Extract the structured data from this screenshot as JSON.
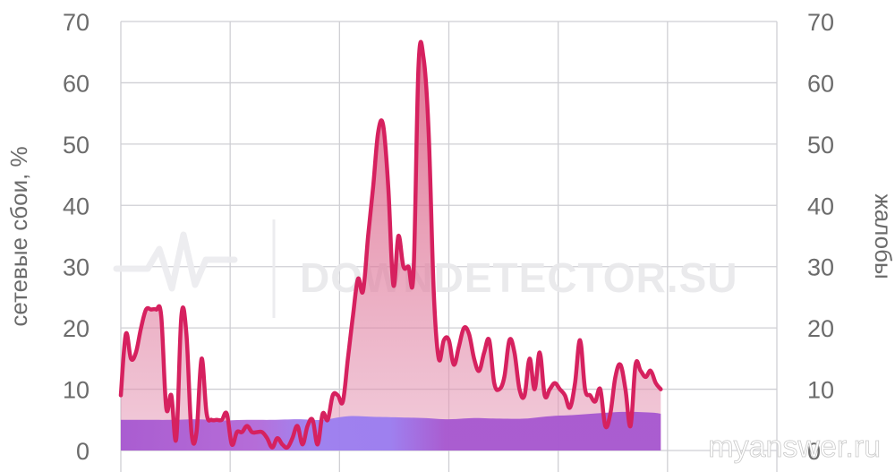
{
  "chart_data": {
    "type": "area",
    "y_left_label": "сетевые сбои, %",
    "y_right_label": "жалобы",
    "ylim": [
      0,
      70
    ],
    "y_ticks": [
      "0",
      "10",
      "20",
      "30",
      "40",
      "50",
      "60",
      "70"
    ],
    "x_range": [
      0,
      130
    ],
    "grid": true,
    "series": [
      {
        "role": "baseline",
        "color": "#a657d0",
        "points": [
          [
            0,
            5
          ],
          [
            5,
            5
          ],
          [
            10,
            5
          ],
          [
            15,
            5.1
          ],
          [
            20,
            4.9
          ],
          [
            25,
            5
          ],
          [
            30,
            5
          ],
          [
            35,
            5.1
          ],
          [
            40,
            5
          ],
          [
            45,
            5.6
          ],
          [
            50,
            5.5
          ],
          [
            55,
            5.4
          ],
          [
            60,
            5.3
          ],
          [
            65,
            5.1
          ],
          [
            70,
            5.3
          ],
          [
            75,
            5.2
          ],
          [
            80,
            5.2
          ],
          [
            85,
            5.6
          ],
          [
            90,
            5.8
          ],
          [
            95,
            6.1
          ],
          [
            100,
            6.3
          ],
          [
            105,
            6.2
          ],
          [
            110,
            6
          ],
          [
            115,
            5.8
          ],
          [
            120,
            5.7
          ],
          [
            125,
            5.6
          ],
          [
            130,
            5.2
          ]
        ]
      },
      {
        "role": "complaints",
        "color": "#d6215f",
        "fill": "#e6a1bd",
        "points": [
          [
            0,
            9
          ],
          [
            1,
            19
          ],
          [
            2,
            15
          ],
          [
            3,
            16
          ],
          [
            4,
            20
          ],
          [
            5,
            23
          ],
          [
            6,
            23
          ],
          [
            7,
            23
          ],
          [
            8,
            22
          ],
          [
            9,
            7
          ],
          [
            10,
            9
          ],
          [
            11,
            2
          ],
          [
            12,
            22
          ],
          [
            13,
            19
          ],
          [
            14,
            3
          ],
          [
            15,
            3
          ],
          [
            16,
            15
          ],
          [
            17,
            6
          ],
          [
            18,
            5
          ],
          [
            19,
            5
          ],
          [
            20,
            5
          ],
          [
            21,
            6
          ],
          [
            22,
            1
          ],
          [
            23,
            3
          ],
          [
            24,
            3
          ],
          [
            25,
            4
          ],
          [
            26,
            3
          ],
          [
            27,
            3
          ],
          [
            28,
            3
          ],
          [
            29,
            2
          ],
          [
            30,
            0.5
          ],
          [
            31,
            2
          ],
          [
            32,
            1
          ],
          [
            33,
            0.5
          ],
          [
            34,
            2
          ],
          [
            35,
            4
          ],
          [
            36,
            1
          ],
          [
            37,
            4
          ],
          [
            38,
            5
          ],
          [
            39,
            1
          ],
          [
            40,
            6
          ],
          [
            41,
            5
          ],
          [
            42,
            9
          ],
          [
            43,
            9
          ],
          [
            44,
            8
          ],
          [
            45,
            15
          ],
          [
            46,
            22
          ],
          [
            47,
            28
          ],
          [
            48,
            26
          ],
          [
            49,
            35
          ],
          [
            50,
            43
          ],
          [
            51,
            52
          ],
          [
            52,
            53
          ],
          [
            53,
            43
          ],
          [
            54,
            27
          ],
          [
            55,
            35
          ],
          [
            56,
            30
          ],
          [
            57,
            30
          ],
          [
            58,
            29
          ],
          [
            59,
            63
          ],
          [
            60,
            64
          ],
          [
            61,
            52
          ],
          [
            62,
            26
          ],
          [
            63,
            15
          ],
          [
            64,
            18
          ],
          [
            65,
            18
          ],
          [
            66,
            14
          ],
          [
            67,
            17
          ],
          [
            68,
            20
          ],
          [
            69,
            19
          ],
          [
            70,
            15
          ],
          [
            71,
            13
          ],
          [
            72,
            16
          ],
          [
            73,
            18
          ],
          [
            74,
            11
          ],
          [
            75,
            10
          ],
          [
            76,
            12
          ],
          [
            77,
            18
          ],
          [
            78,
            16
          ],
          [
            79,
            10
          ],
          [
            80,
            9
          ],
          [
            81,
            15
          ],
          [
            82,
            10
          ],
          [
            83,
            16
          ],
          [
            84,
            9
          ],
          [
            85,
            10
          ],
          [
            86,
            11
          ],
          [
            87,
            10
          ],
          [
            88,
            9
          ],
          [
            89,
            7
          ],
          [
            90,
            11
          ],
          [
            91,
            18
          ],
          [
            92,
            10
          ],
          [
            93,
            9
          ],
          [
            94,
            8
          ],
          [
            95,
            10
          ],
          [
            96,
            4
          ],
          [
            97,
            6
          ],
          [
            98,
            12
          ],
          [
            99,
            14
          ],
          [
            100,
            10
          ],
          [
            101,
            4
          ],
          [
            102,
            14
          ],
          [
            103,
            13
          ],
          [
            104,
            12
          ],
          [
            105,
            13
          ],
          [
            106,
            11
          ],
          [
            107,
            10
          ]
        ]
      }
    ],
    "watermark": "DOWNDETECTOR.SU",
    "site_watermark": "myanswer.ru"
  }
}
